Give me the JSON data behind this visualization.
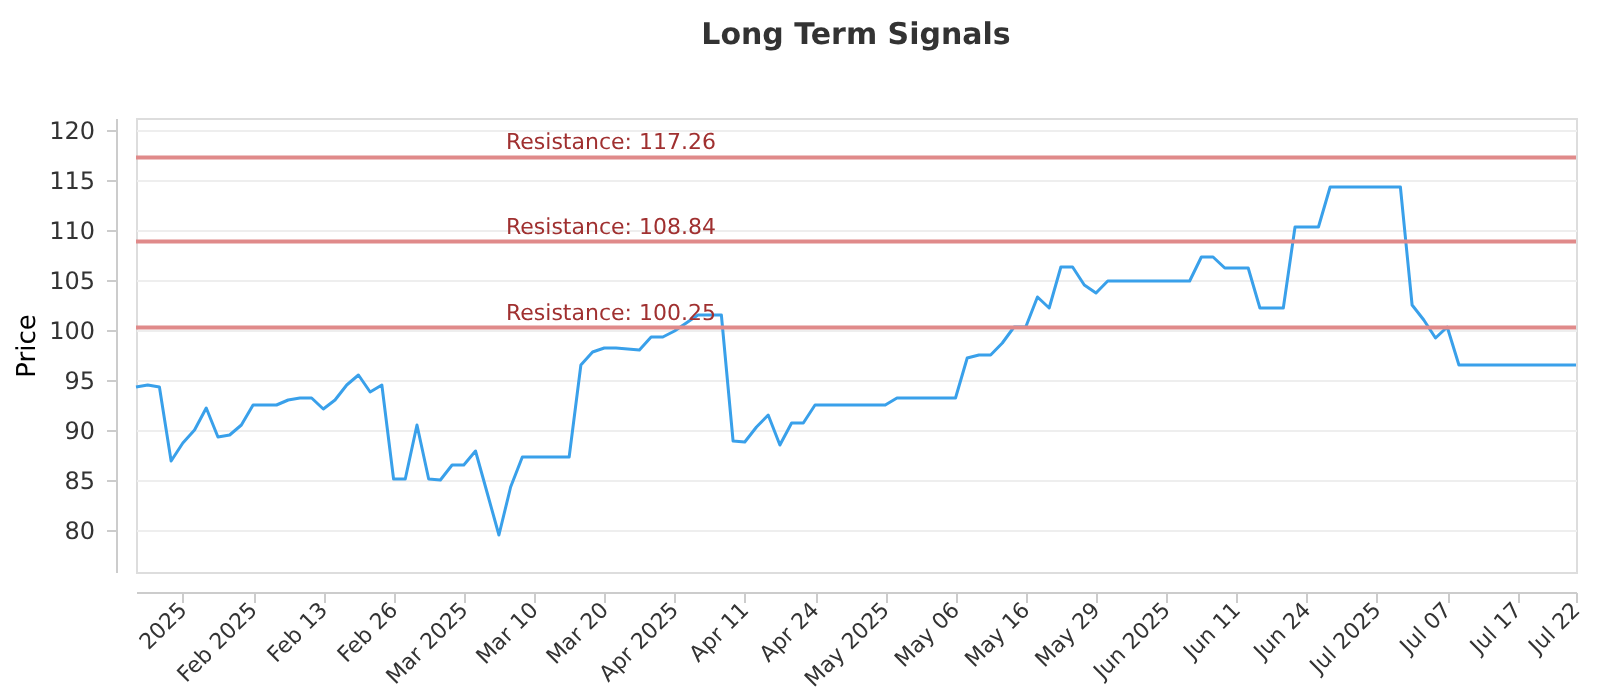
{
  "chart_data": {
    "type": "line",
    "title": "Long Term Signals",
    "ylabel": "Price",
    "categories": [
      null,
      null,
      null,
      null,
      "2025",
      null,
      null,
      null,
      null,
      null,
      "Feb 2025",
      null,
      null,
      null,
      null,
      null,
      "Feb 13",
      null,
      null,
      null,
      null,
      null,
      "Feb 26",
      null,
      null,
      null,
      null,
      null,
      "Mar 2025",
      null,
      null,
      null,
      null,
      null,
      "Mar 10",
      null,
      null,
      null,
      null,
      null,
      "Mar 20",
      null,
      null,
      null,
      null,
      null,
      "Apr 2025",
      null,
      null,
      null,
      null,
      null,
      "Apr 11",
      null,
      null,
      null,
      null,
      null,
      "Apr 24",
      null,
      null,
      null,
      null,
      null,
      "May 2025",
      null,
      null,
      null,
      null,
      null,
      "May 06",
      null,
      null,
      null,
      null,
      null,
      "May 16",
      null,
      null,
      null,
      null,
      null,
      "May 29",
      null,
      null,
      null,
      null,
      null,
      "Jun 2025",
      null,
      null,
      null,
      null,
      null,
      "Jun 11",
      null,
      null,
      null,
      null,
      null,
      "Jun 24",
      null,
      null,
      null,
      null,
      null,
      "Jul 2025",
      null,
      null,
      null,
      null,
      null,
      "Jul 07",
      null,
      null,
      null,
      null,
      null,
      "Jul 17",
      null,
      null,
      null,
      null,
      "Jul 22"
    ],
    "series": [
      {
        "color": "#39a0ea",
        "values": [
          94.3,
          94.5,
          94.3,
          86.9,
          88.7,
          90,
          92.2,
          89.3,
          89.5,
          90.5,
          92.5,
          92.5,
          92.5,
          93,
          93.2,
          93.2,
          92.1,
          93,
          94.5,
          95.5,
          93.8,
          94.5,
          85.1,
          85.1,
          90.5,
          85.1,
          85,
          86.5,
          86.5,
          87.9,
          83.7,
          79.5,
          84.3,
          87.3,
          87.3,
          87.3,
          87.3,
          87.3,
          96.5,
          97.8,
          98.2,
          98.2,
          98.1,
          98,
          99.3,
          99.3,
          99.9,
          100.7,
          101.5,
          101.5,
          101.5,
          88.9,
          88.8,
          90.3,
          91.5,
          88.5,
          90.7,
          90.7,
          92.5,
          92.5,
          92.5,
          92.5,
          92.5,
          92.5,
          92.5,
          93.2,
          93.2,
          93.2,
          93.2,
          93.2,
          93.2,
          97.2,
          97.5,
          97.5,
          98.7,
          100.3,
          100.3,
          103.3,
          102.2,
          106.3,
          106.3,
          104.5,
          103.7,
          104.9,
          104.9,
          104.9,
          104.9,
          104.9,
          104.9,
          104.9,
          104.9,
          107.3,
          107.3,
          106.2,
          106.2,
          106.2,
          102.2,
          102.2,
          102.2,
          110.3,
          110.3,
          110.3,
          114.3,
          114.3,
          114.3,
          114.3,
          114.3,
          114.3,
          114.3,
          102.5,
          101,
          99.2,
          100.3,
          96.5,
          96.5,
          96.5,
          96.5,
          96.5,
          96.5,
          96.5,
          96.5,
          96.5,
          96.5,
          96.5
        ]
      }
    ],
    "ylim": [
      75.8,
      121.2
    ],
    "yticks": [
      80,
      85,
      90,
      95,
      100,
      105,
      110,
      115,
      120
    ],
    "ref_lines": [
      {
        "axis": "y",
        "value": 117.26,
        "label": "Resistance: 117.26",
        "color": "#e08a8a"
      },
      {
        "axis": "y",
        "value": 108.84,
        "label": "Resistance: 108.84",
        "color": "#e08a8a"
      },
      {
        "axis": "y",
        "value": 100.25,
        "label": "Resistance: 100.25",
        "color": "#e08a8a"
      }
    ],
    "grid": "y",
    "marker": "none",
    "line_style": "solid"
  }
}
